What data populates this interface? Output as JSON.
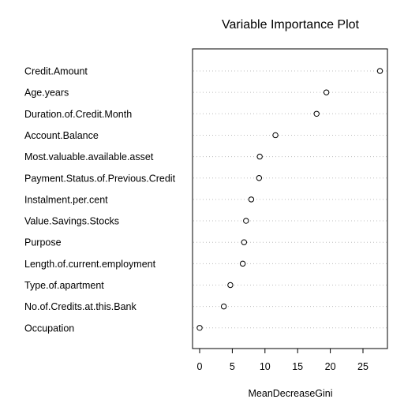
{
  "chart_data": {
    "type": "scatter",
    "title": "Variable Importance Plot",
    "xlabel": "MeanDecreaseGini",
    "ylabel": "",
    "xlim": [
      -1.5,
      29
    ],
    "xticks": [
      0,
      5,
      10,
      15,
      20,
      25
    ],
    "grid": "horizontal dotted",
    "legend": "none",
    "categories": [
      "Credit.Amount",
      "Age.years",
      "Duration.of.Credit.Month",
      "Account.Balance",
      "Most.valuable.available.asset",
      "Payment.Status.of.Previous.Credit",
      "Instalment.per.cent",
      "Value.Savings.Stocks",
      "Purpose",
      "Length.of.current.employment",
      "Type.of.apartment",
      "No.of.Credits.at.this.Bank",
      "Occupation"
    ],
    "values": [
      27.6,
      19.4,
      17.9,
      11.6,
      9.2,
      9.1,
      7.9,
      7.1,
      6.8,
      6.6,
      4.7,
      3.7,
      0.0
    ]
  },
  "colors": {
    "points": "#000000",
    "grid": "#bdbdbd",
    "frame": "#000000"
  }
}
